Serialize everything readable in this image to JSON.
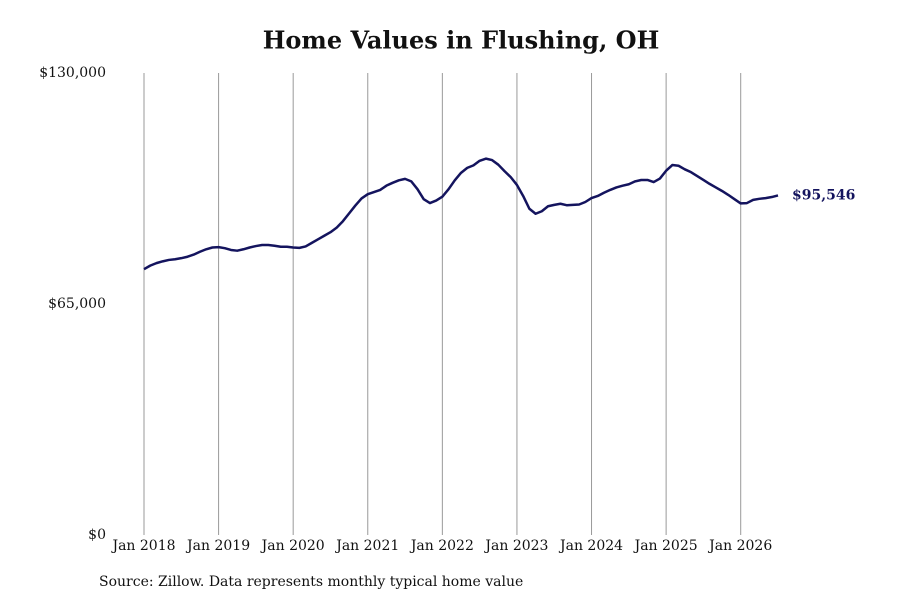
{
  "chart_data": {
    "type": "line",
    "title": "Home Values in Flushing, OH",
    "source": "Source: Zillow. Data represents monthly typical home value",
    "color": "#14145e",
    "x": [
      "2018-01",
      "2018-02",
      "2018-03",
      "2018-04",
      "2018-05",
      "2018-06",
      "2018-07",
      "2018-08",
      "2018-09",
      "2018-10",
      "2018-11",
      "2018-12",
      "2019-01",
      "2019-02",
      "2019-03",
      "2019-04",
      "2019-05",
      "2019-06",
      "2019-07",
      "2019-08",
      "2019-09",
      "2019-10",
      "2019-11",
      "2019-12",
      "2020-01",
      "2020-02",
      "2020-03",
      "2020-04",
      "2020-05",
      "2020-06",
      "2020-07",
      "2020-08",
      "2020-09",
      "2020-10",
      "2020-11",
      "2020-12",
      "2021-01",
      "2021-02",
      "2021-03",
      "2021-04",
      "2021-05",
      "2021-06",
      "2021-07",
      "2021-08",
      "2021-09",
      "2021-10",
      "2021-11",
      "2021-12",
      "2022-01",
      "2022-02",
      "2022-03",
      "2022-04",
      "2022-05",
      "2022-06",
      "2022-07",
      "2022-08",
      "2022-09",
      "2022-10",
      "2022-11",
      "2022-12",
      "2023-01",
      "2023-02",
      "2023-03",
      "2023-04",
      "2023-05",
      "2023-06",
      "2023-07",
      "2023-08",
      "2023-09",
      "2023-10",
      "2023-11",
      "2023-12",
      "2024-01",
      "2024-02",
      "2024-03",
      "2024-04",
      "2024-05",
      "2024-06",
      "2024-07",
      "2024-08",
      "2024-09",
      "2024-10",
      "2024-11",
      "2024-12",
      "2025-01",
      "2025-02",
      "2025-03",
      "2025-04",
      "2025-05",
      "2025-06",
      "2025-07",
      "2025-08",
      "2025-09",
      "2025-10",
      "2025-11",
      "2025-12",
      "2026-01",
      "2026-02",
      "2026-03",
      "2026-04",
      "2026-05",
      "2026-06",
      "2026-07"
    ],
    "values": [
      74800,
      75800,
      76500,
      77000,
      77400,
      77600,
      77900,
      78300,
      78900,
      79700,
      80400,
      80900,
      81000,
      80700,
      80200,
      80000,
      80400,
      80900,
      81300,
      81600,
      81600,
      81400,
      81100,
      81100,
      80900,
      80800,
      81200,
      82200,
      83200,
      84200,
      85200,
      86500,
      88300,
      90500,
      92700,
      94700,
      95900,
      96500,
      97100,
      98300,
      99100,
      99800,
      100200,
      99500,
      97300,
      94500,
      93400,
      94100,
      95200,
      97300,
      99800,
      101900,
      103300,
      104000,
      105300,
      105900,
      105500,
      104200,
      102400,
      100700,
      98500,
      95400,
      91800,
      90400,
      91100,
      92500,
      92900,
      93200,
      92800,
      92900,
      93000,
      93700,
      94800,
      95400,
      96300,
      97100,
      97800,
      98300,
      98700,
      99500,
      99900,
      99900,
      99300,
      100300,
      102500,
      104100,
      103900,
      102900,
      102100,
      101000,
      99900,
      98800,
      97800,
      96800,
      95700,
      94500,
      93300,
      93400,
      94300,
      94600,
      94800,
      95100,
      95546
    ],
    "value_labels": [
      null,
      null,
      null,
      null,
      null,
      null,
      null,
      null,
      null,
      null,
      null,
      null,
      null,
      null,
      null,
      null,
      null,
      null,
      null,
      null,
      null,
      null,
      null,
      null,
      null,
      null,
      null,
      null,
      null,
      null,
      null,
      null,
      null,
      null,
      null,
      null,
      null,
      null,
      null,
      null,
      null,
      null,
      null,
      null,
      null,
      null,
      null,
      null,
      null,
      null,
      null,
      null,
      null,
      null,
      null,
      null,
      null,
      null,
      null,
      null,
      null,
      null,
      null,
      null,
      null,
      null,
      null,
      null,
      null,
      null,
      null,
      null,
      null,
      null,
      null,
      null,
      null,
      null,
      null,
      null,
      null,
      null,
      null,
      null,
      null,
      null,
      null,
      null,
      null,
      null,
      null,
      null,
      null,
      null,
      null,
      null,
      null,
      null,
      null,
      null,
      null,
      null,
      "$95,546"
    ],
    "xlim": [
      "2018-01",
      "2026-07"
    ],
    "xticks": [
      {
        "value": "2018-01",
        "label": "Jan 2018"
      },
      {
        "value": "2019-01",
        "label": "Jan 2019"
      },
      {
        "value": "2020-01",
        "label": "Jan 2020"
      },
      {
        "value": "2021-01",
        "label": "Jan 2021"
      },
      {
        "value": "2022-01",
        "label": "Jan 2022"
      },
      {
        "value": "2023-01",
        "label": "Jan 2023"
      },
      {
        "value": "2024-01",
        "label": "Jan 2024"
      },
      {
        "value": "2025-01",
        "label": "Jan 2025"
      },
      {
        "value": "2026-01",
        "label": "Jan 2026"
      }
    ],
    "ylim": [
      0,
      130000
    ],
    "yticks": [
      {
        "value": 0,
        "label": "$0"
      },
      {
        "value": 65000,
        "label": "$65,000"
      },
      {
        "value": 130000,
        "label": "$130,000"
      }
    ],
    "grid": "x"
  }
}
